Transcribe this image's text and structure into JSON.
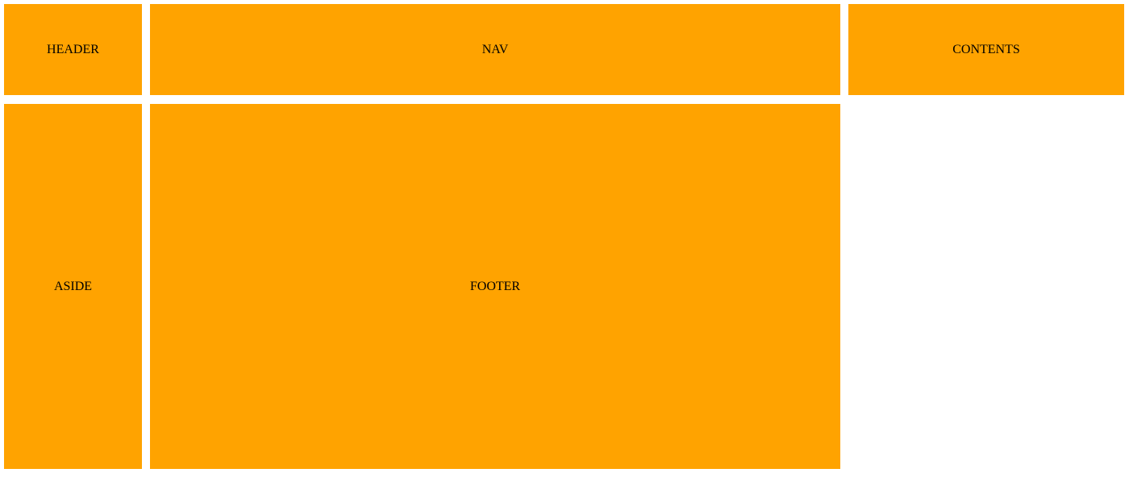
{
  "layout": {
    "header": {
      "label": "HEADER"
    },
    "nav": {
      "label": "NAV"
    },
    "contents": {
      "label": "CONTENTS"
    },
    "aside": {
      "label": "ASIDE"
    },
    "footer": {
      "label": "FOOTER"
    }
  },
  "colors": {
    "box_background": "#ffa300",
    "page_background": "#ffffff",
    "text": "#000000"
  }
}
